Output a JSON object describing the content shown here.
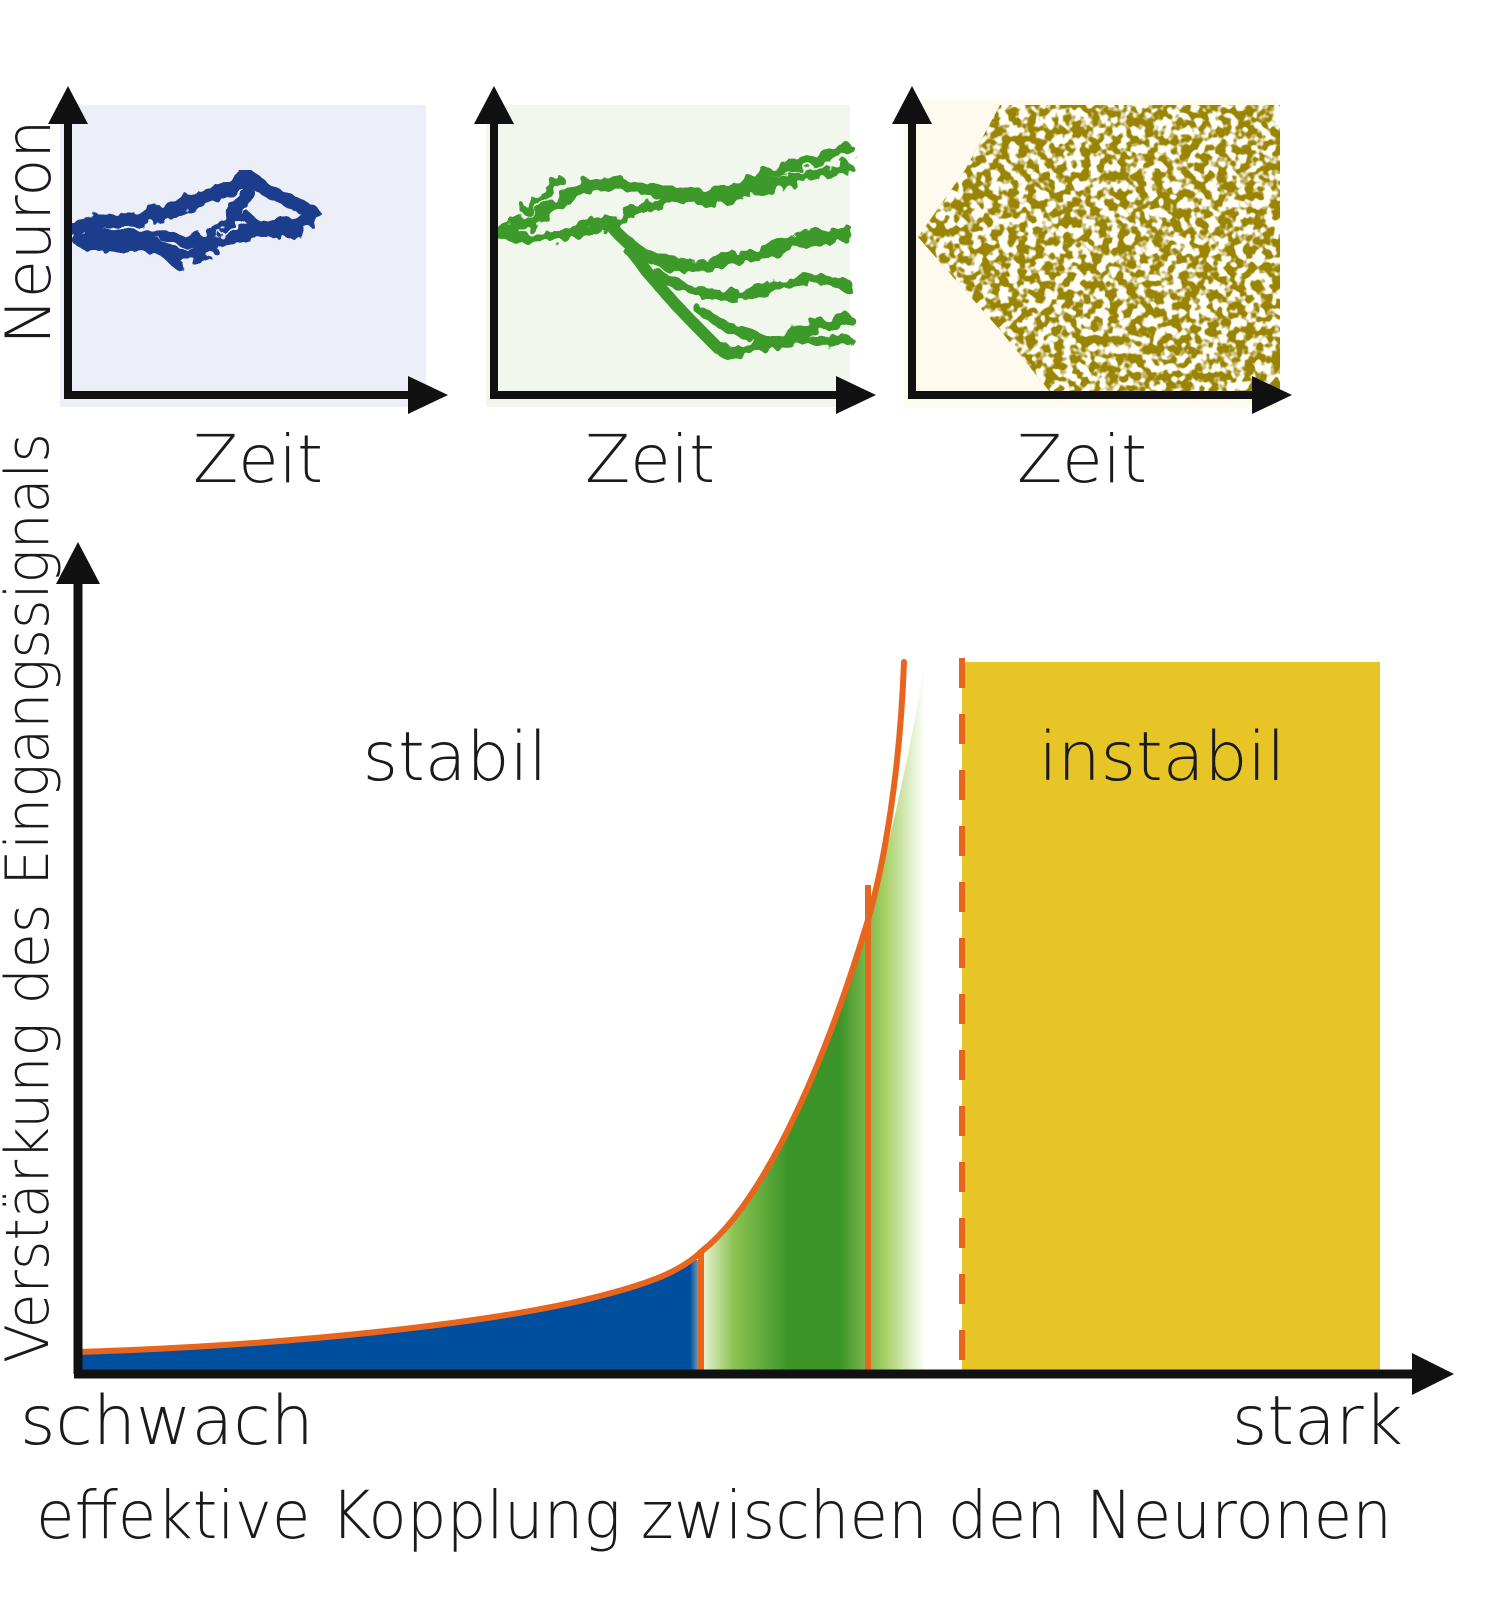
{
  "panels": [
    {
      "xlabel": "Zeit",
      "background": "#eceef8",
      "pattern_color": "#1c3e8c"
    },
    {
      "xlabel": "Zeit",
      "background": "#f1f7ec",
      "pattern_color": "#3c9a2c"
    },
    {
      "xlabel": "Zeit",
      "background": "#fefbee",
      "pattern_color": "#9a8404"
    }
  ],
  "panel_ylabel": "Neuron",
  "main": {
    "ylabel": "Verstärkung des Eingangssignals",
    "x_left": "schwach",
    "x_right": "stark",
    "xlabel": "effektive Kopplung zwischen den Neuronen",
    "region_stable": "stabil",
    "region_unstable": "instabil"
  },
  "colors": {
    "axis": "#111111",
    "curve": "#e8651e",
    "blue_fill": "#004e9e",
    "green_fill": "#3a9427",
    "yellow_fill": "#e8c526"
  }
}
